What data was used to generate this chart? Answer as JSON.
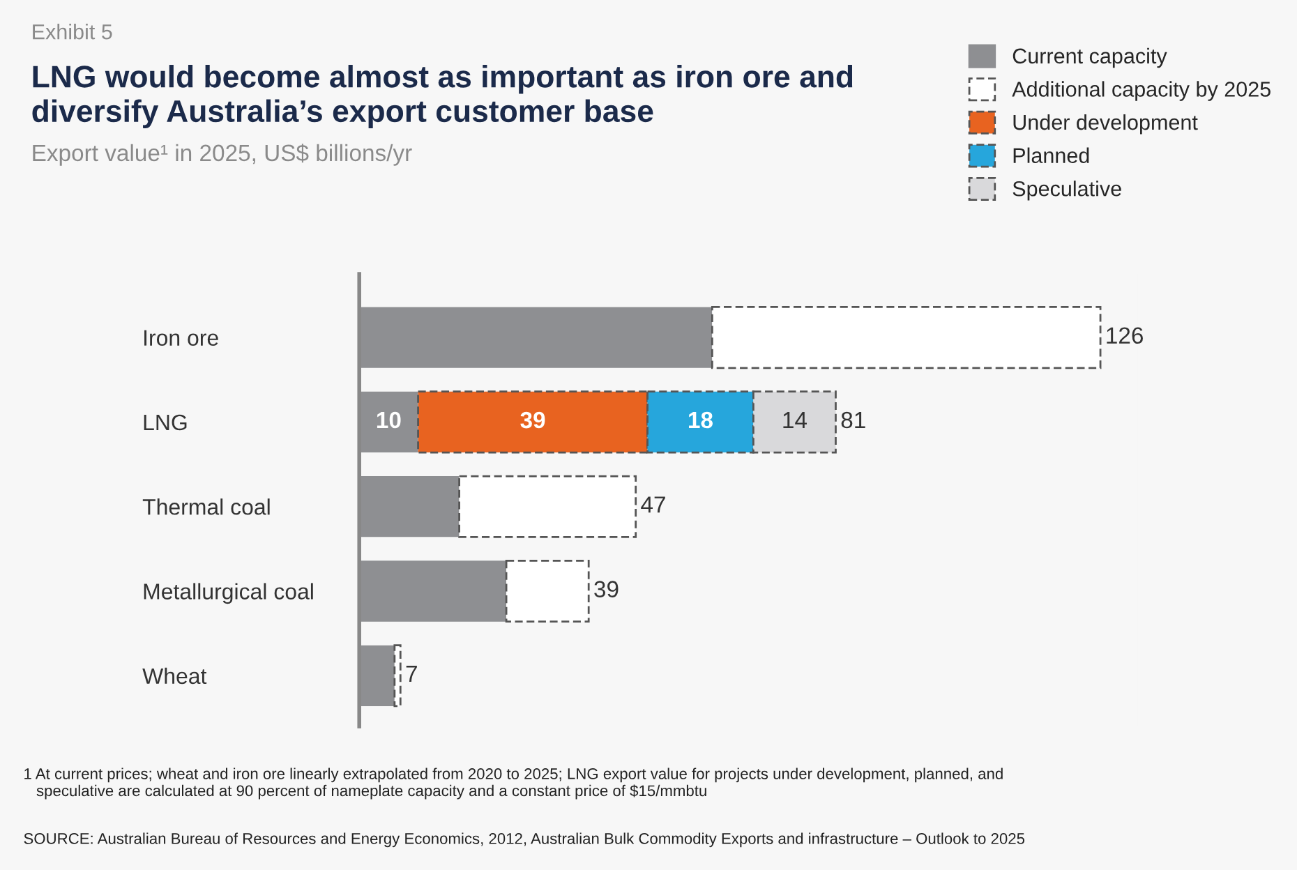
{
  "chart_data": {
    "type": "bar",
    "orientation": "horizontal",
    "stacked": true,
    "title": "LNG would become almost as important as iron ore and\ndiversify Australia’s export customer base",
    "subtitle": "Export value¹ in 2025, US$ billions/yr",
    "categories": [
      "Iron ore",
      "LNG",
      "Thermal coal",
      "Metallurgical coal",
      "Wheat"
    ],
    "series": [
      {
        "name": "Current capacity",
        "color": "#8e8f92",
        "values": [
          60,
          10,
          17,
          25,
          6
        ],
        "value_labels": [
          null,
          "10",
          null,
          null,
          null
        ]
      },
      {
        "name": "Additional capacity by 2025",
        "color": "#ffffff",
        "line_style": "dashed",
        "values": [
          66,
          null,
          30,
          14,
          1
        ]
      },
      {
        "name": "Under development",
        "color": "#e86320",
        "line_style": "dashed",
        "values": [
          null,
          39,
          null,
          null,
          null
        ],
        "value_labels": [
          null,
          "39",
          null,
          null,
          null
        ]
      },
      {
        "name": "Planned",
        "color": "#26a6dc",
        "line_style": "dashed",
        "values": [
          null,
          18,
          null,
          null,
          null
        ],
        "value_labels": [
          null,
          "18",
          null,
          null,
          null
        ]
      },
      {
        "name": "Speculative",
        "color": "#d9d9db",
        "line_style": "dashed",
        "values": [
          null,
          14,
          null,
          null,
          null
        ],
        "value_labels": [
          null,
          "14",
          null,
          null,
          null
        ]
      }
    ],
    "totals": [
      "126",
      "81",
      "47",
      "39",
      "7"
    ],
    "tick_labels": "y",
    "legend": "top right",
    "grid": false,
    "annotations": [
      "Exhibit 5",
      "1 At current prices; wheat and iron ore linearly extrapolated from 2020 to 2025; LNG export value for projects under development, planned, and\n   speculative are calculated at 90 percent of nameplate capacity and a constant price of $15/mmbtu",
      "SOURCE: Australian Bureau of Resources and Energy Economics, 2012, Australian Bulk Commodity Exports and infrastructure – Outlook to 2025"
    ]
  }
}
